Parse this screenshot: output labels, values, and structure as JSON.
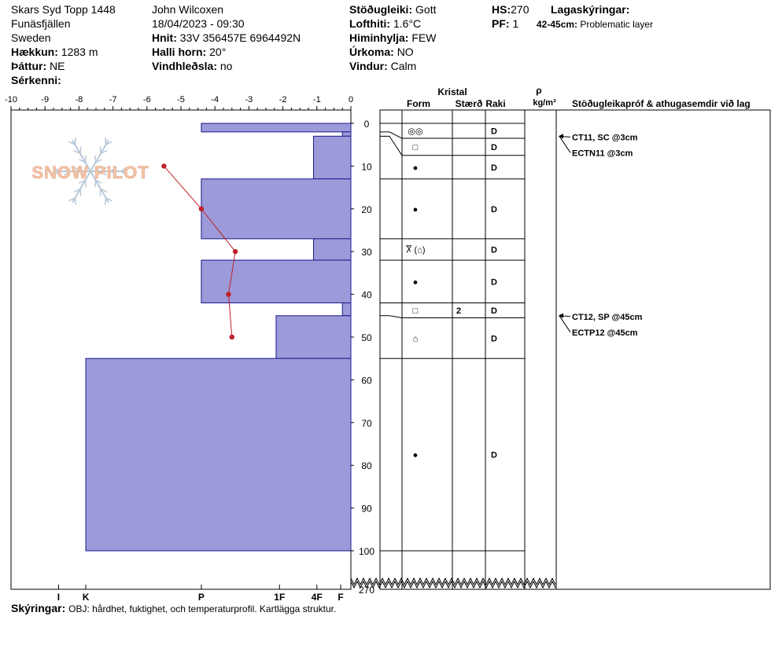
{
  "site": {
    "name": "Skars Syd Topp 1448",
    "region": "Funäsfjällen",
    "country": "Sweden",
    "elevation_label": "Hækkun:",
    "elevation": "1283 m",
    "aspect_label": "Þáttur:",
    "aspect": "NE",
    "special_label": "Sérkenni:"
  },
  "observer": {
    "name": "John Wilcoxen",
    "datetime": "18/04/2023 - 09:30",
    "coords_label": "Hnit:",
    "coords": "33V 356457E 6964492N",
    "slope_label": "Halli horn:",
    "slope": "20°",
    "wind_loading_label": "Vindhleðsla:",
    "wind_loading": "no"
  },
  "conditions": {
    "stability_label": "Stöðugleiki:",
    "stability": "Gott",
    "air_temp_label": "Lofthiti:",
    "air_temp": "1.6°C",
    "sky_label": "Himinhylja:",
    "sky": "FEW",
    "precip_label": "Úrkoma:",
    "precip": "NO",
    "wind_label": "Vindur:",
    "wind": "Calm"
  },
  "snowpack": {
    "hs_label": "HS:",
    "hs": "270",
    "pf_label": "PF:",
    "pf": "1",
    "layer_notes_label": "Lagaskýringar:",
    "layer_note_range": "42-45cm:",
    "layer_note_text": "Problematic layer"
  },
  "logo": {
    "text": "SNOW PILOT"
  },
  "table_headers": {
    "crystal": "Kristal",
    "form": "Form",
    "size": "Stærð",
    "moisture": "Raki",
    "rho": "ρ",
    "density_unit": "kg/m³",
    "tests": "Stöðugleikapróf & athugasemdir við lag"
  },
  "footer": {
    "label": "Skýringar:",
    "text": "OBJ: hårdhet, fuktighet, och temperaturprofil. Kartlägga struktur."
  },
  "colors": {
    "hardness_fill": "#9c9ad8",
    "hardness_stroke": "#1a1a8c",
    "temp_line": "#c0202a",
    "logo_text": "#f2c4a8",
    "logo_flake": "#b8c8d8"
  },
  "chart_data": {
    "type": "bar",
    "title": "",
    "temperature_axis": {
      "ticks": [
        -10,
        -9,
        -8,
        -7,
        -6,
        -5,
        -4,
        -3,
        -2,
        -1,
        0
      ],
      "tick_labels": [
        "-10",
        "-9",
        "-8",
        "-7",
        "-6",
        "-5",
        "-4",
        "-3",
        "-2",
        "-1",
        "0"
      ],
      "range": [
        -10,
        0
      ]
    },
    "depth_axis": {
      "ticks": [
        0,
        10,
        20,
        30,
        40,
        50,
        60,
        70,
        80,
        90,
        100
      ],
      "tick_labels": [
        "0",
        "10",
        "20",
        "30",
        "40",
        "50",
        "60",
        "70",
        "80",
        "90",
        "100"
      ],
      "range": [
        0,
        100
      ],
      "total_label": "270"
    },
    "hardness_scale": {
      "labels": [
        "I",
        "K",
        "P",
        "1F",
        "4F",
        "F"
      ],
      "values": [
        8.6,
        7.8,
        4.4,
        2.1,
        1.0,
        0.3
      ]
    },
    "hardness_layers": [
      {
        "top": 0,
        "bottom": 2,
        "hardness": 4.4
      },
      {
        "top": 2,
        "bottom": 3,
        "hardness": 0.25
      },
      {
        "top": 3,
        "bottom": 13,
        "hardness": 1.1
      },
      {
        "top": 13,
        "bottom": 27,
        "hardness": 4.4
      },
      {
        "top": 27,
        "bottom": 32,
        "hardness": 1.1
      },
      {
        "top": 32,
        "bottom": 42,
        "hardness": 4.4
      },
      {
        "top": 42,
        "bottom": 45,
        "hardness": 0.25
      },
      {
        "top": 45,
        "bottom": 55,
        "hardness": 2.2
      },
      {
        "top": 55,
        "bottom": 100,
        "hardness": 7.8
      }
    ],
    "temperature_profile": [
      {
        "depth": 10,
        "temp": -5.5
      },
      {
        "depth": 20,
        "temp": -4.4
      },
      {
        "depth": 30,
        "temp": -3.4
      },
      {
        "depth": 40,
        "temp": -3.6
      },
      {
        "depth": 50,
        "temp": -3.5
      }
    ],
    "layer_table": [
      {
        "top": 0,
        "bottom": 3.5,
        "form": "◎◎",
        "size": "",
        "moisture": "D"
      },
      {
        "top": 3.5,
        "bottom": 7.5,
        "form": "□",
        "size": "",
        "moisture": "D"
      },
      {
        "top": 7.5,
        "bottom": 13,
        "form": "●",
        "size": "",
        "moisture": "D"
      },
      {
        "top": 13,
        "bottom": 27,
        "form": "●",
        "size": "",
        "moisture": "D"
      },
      {
        "top": 27,
        "bottom": 32,
        "form": "Ⴟ (⌂)",
        "size": "",
        "moisture": "D"
      },
      {
        "top": 32,
        "bottom": 42,
        "form": "●",
        "size": "",
        "moisture": "D"
      },
      {
        "top": 42,
        "bottom": 45.5,
        "form": "□",
        "size": "2",
        "moisture": "D"
      },
      {
        "top": 45.5,
        "bottom": 55,
        "form": "⌂",
        "size": "",
        "moisture": "D"
      },
      {
        "top": 55,
        "bottom": 100,
        "form": "●",
        "size": "",
        "moisture": "D"
      }
    ],
    "stability_tests": [
      {
        "depth": 3,
        "lines": [
          "CT11, SC @3cm",
          "ECTN11 @3cm"
        ]
      },
      {
        "depth": 45,
        "lines": [
          "CT12, SP @45cm",
          "ECTP12 @45cm"
        ]
      }
    ]
  }
}
